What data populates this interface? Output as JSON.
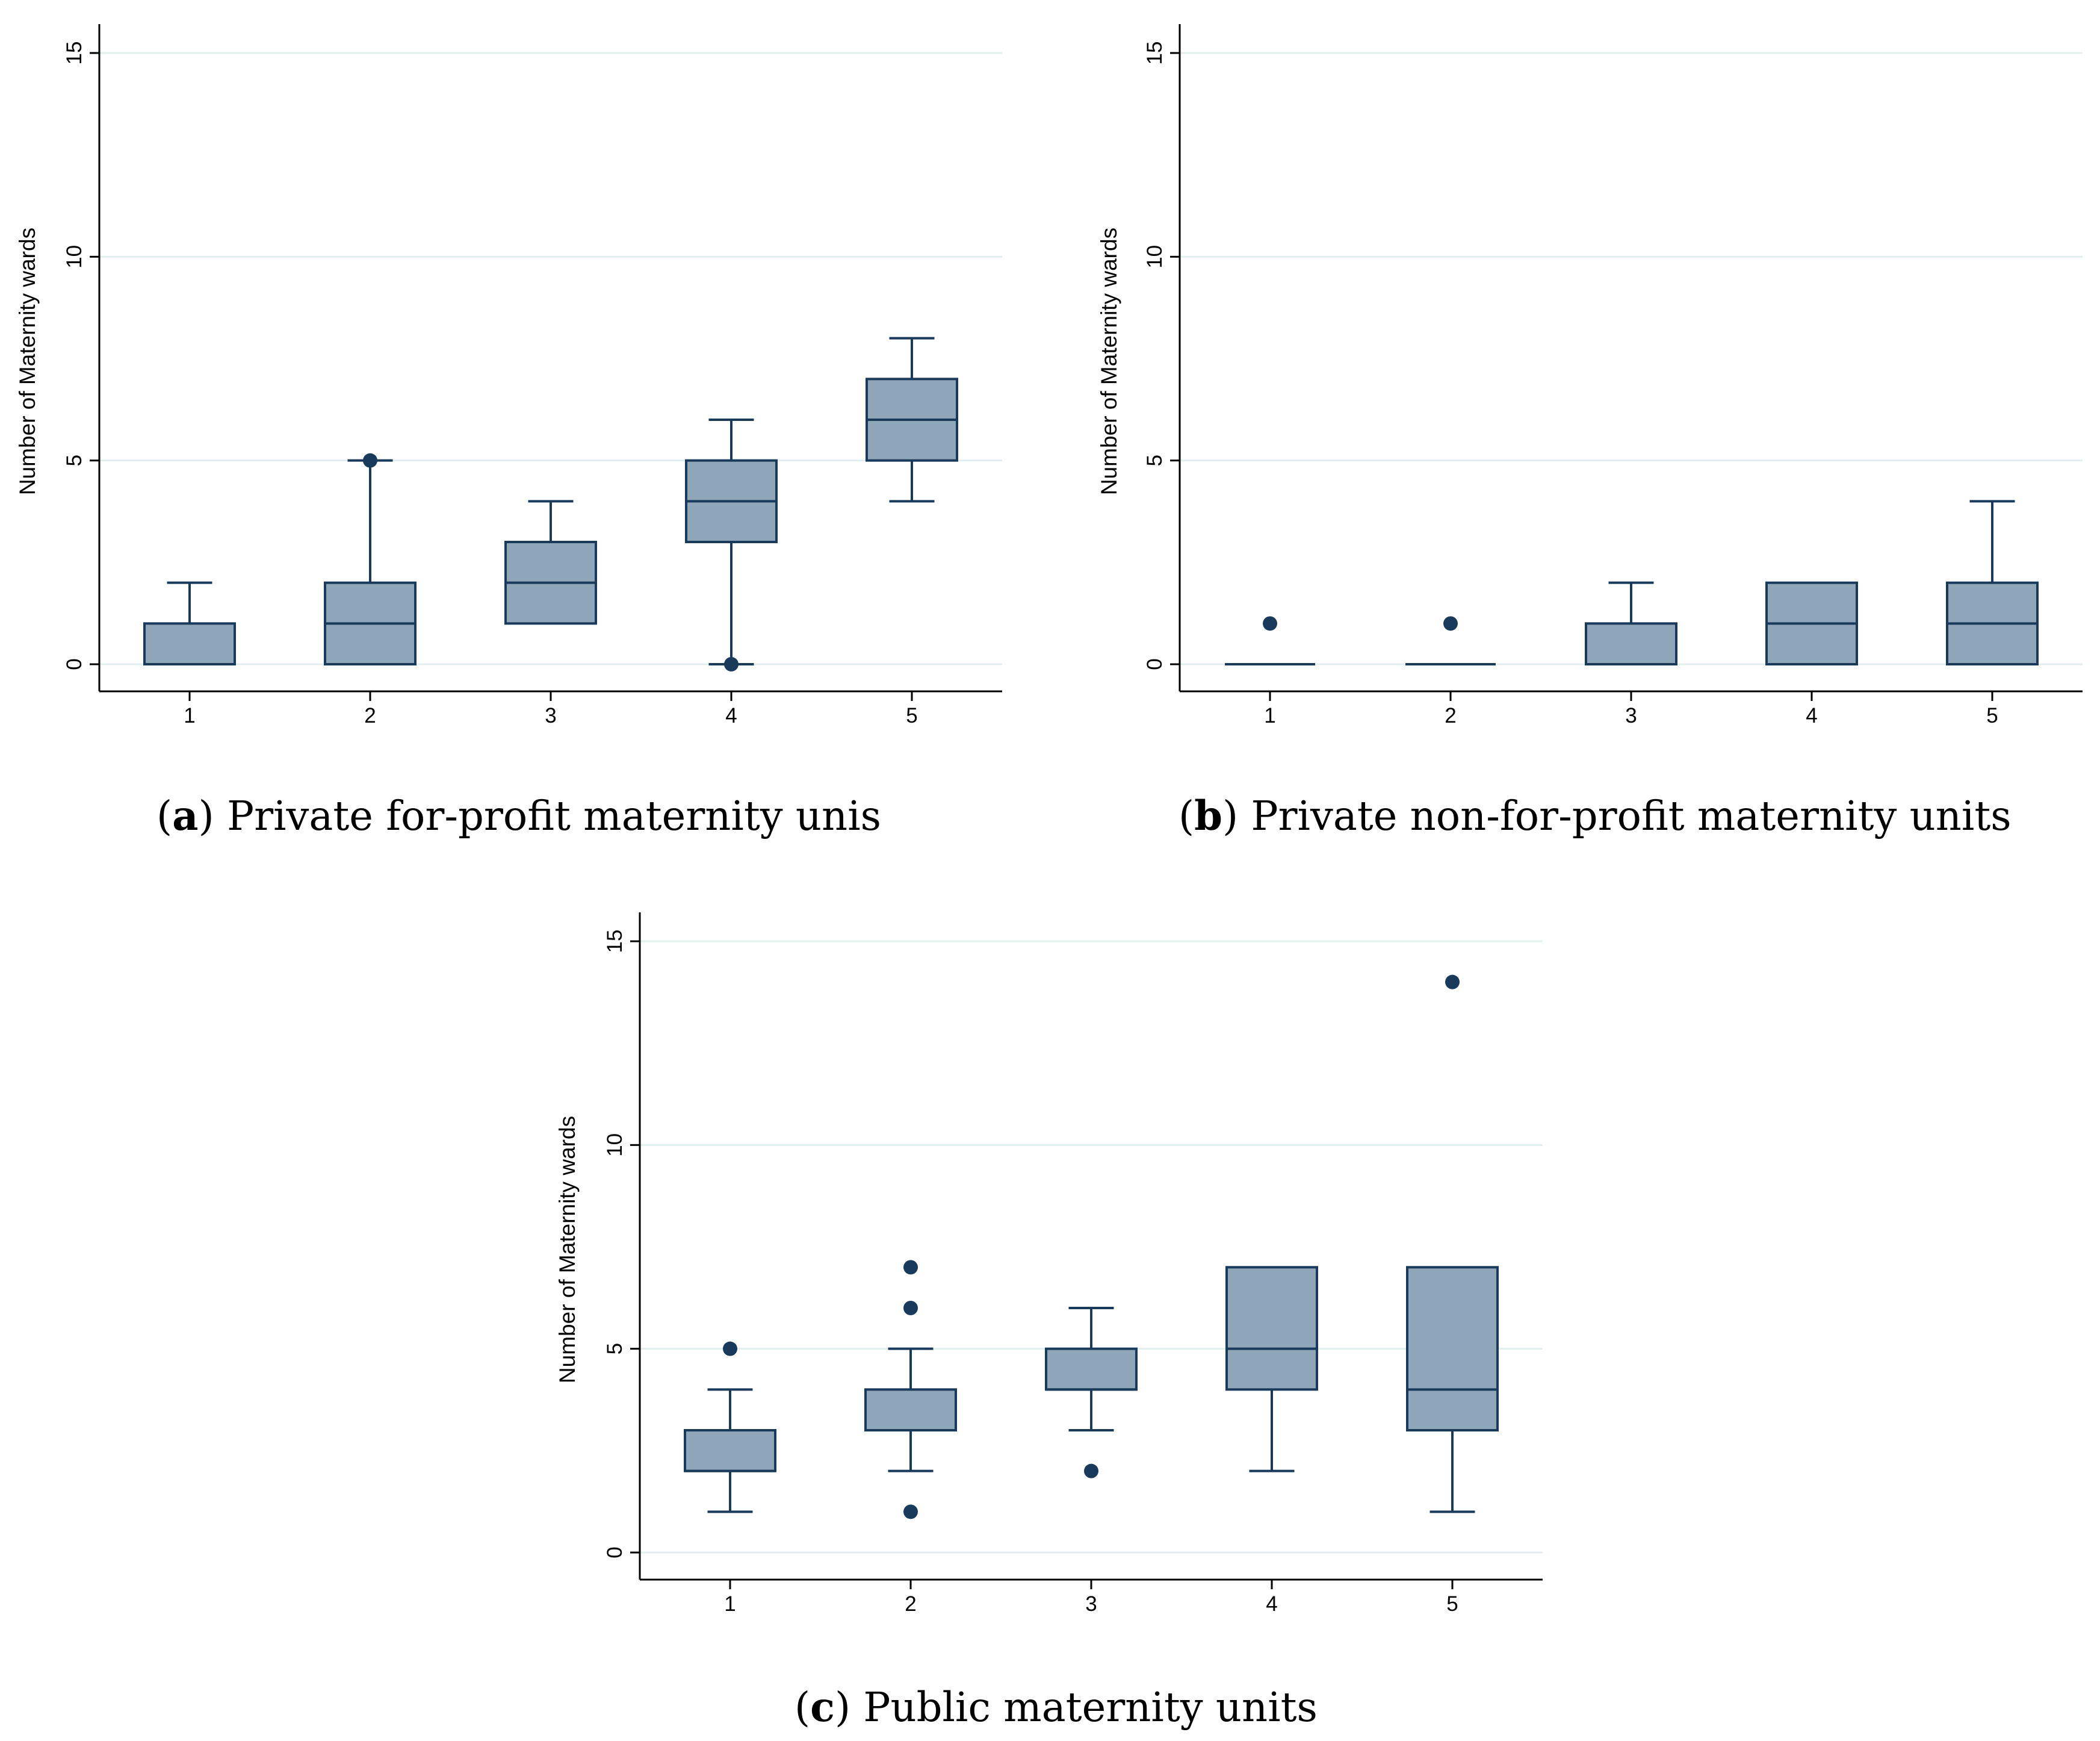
{
  "chart_data": [
    {
      "type": "boxplot",
      "caption_label": "a",
      "caption_text": "Private for-profit maternity unis",
      "xlabel": "",
      "ylabel": "Number of Maternity wards",
      "categories": [
        "1",
        "2",
        "3",
        "4",
        "5"
      ],
      "ylim": [
        0,
        15
      ],
      "yticks": [
        0,
        5,
        10,
        15
      ],
      "grid": true,
      "boxes": [
        {
          "category": "1",
          "whisker_low": 0,
          "q1": 0,
          "median": 0,
          "q3": 1,
          "whisker_high": 2,
          "outliers": []
        },
        {
          "category": "2",
          "whisker_low": 0,
          "q1": 0,
          "median": 1,
          "q3": 2,
          "whisker_high": 5,
          "outliers": [
            5
          ]
        },
        {
          "category": "3",
          "whisker_low": 1,
          "q1": 1,
          "median": 2,
          "q3": 3,
          "whisker_high": 4,
          "outliers": []
        },
        {
          "category": "4",
          "whisker_low": 0,
          "q1": 3,
          "median": 4,
          "q3": 5,
          "whisker_high": 6,
          "outliers": [
            0
          ]
        },
        {
          "category": "5",
          "whisker_low": 4,
          "q1": 5,
          "median": 6,
          "q3": 7,
          "whisker_high": 8,
          "outliers": []
        }
      ]
    },
    {
      "type": "boxplot",
      "caption_label": "b",
      "caption_text": "Private non-for-profit maternity units",
      "xlabel": "",
      "ylabel": "Number of Maternity wards",
      "categories": [
        "1",
        "2",
        "3",
        "4",
        "5"
      ],
      "ylim": [
        0,
        15
      ],
      "yticks": [
        0,
        5,
        10,
        15
      ],
      "grid": true,
      "boxes": [
        {
          "category": "1",
          "whisker_low": 0,
          "q1": 0,
          "median": 0,
          "q3": 0,
          "whisker_high": 0,
          "outliers": [
            1
          ]
        },
        {
          "category": "2",
          "whisker_low": 0,
          "q1": 0,
          "median": 0,
          "q3": 0,
          "whisker_high": 0,
          "outliers": [
            1
          ]
        },
        {
          "category": "3",
          "whisker_low": 0,
          "q1": 0,
          "median": 0,
          "q3": 1,
          "whisker_high": 2,
          "outliers": []
        },
        {
          "category": "4",
          "whisker_low": 0,
          "q1": 0,
          "median": 1,
          "q3": 2,
          "whisker_high": 2,
          "outliers": []
        },
        {
          "category": "5",
          "whisker_low": 0,
          "q1": 0,
          "median": 1,
          "q3": 2,
          "whisker_high": 4,
          "outliers": []
        }
      ]
    },
    {
      "type": "boxplot",
      "caption_label": "c",
      "caption_text": "Public maternity units",
      "xlabel": "",
      "ylabel": "Number of Maternity wards",
      "categories": [
        "1",
        "2",
        "3",
        "4",
        "5"
      ],
      "ylim": [
        0,
        15
      ],
      "yticks": [
        0,
        5,
        10,
        15
      ],
      "grid": true,
      "boxes": [
        {
          "category": "1",
          "whisker_low": 1,
          "q1": 2,
          "median": 2,
          "q3": 3,
          "whisker_high": 4,
          "outliers": [
            5
          ]
        },
        {
          "category": "2",
          "whisker_low": 2,
          "q1": 3,
          "median": 3,
          "q3": 4,
          "whisker_high": 5,
          "outliers": [
            7,
            6,
            1
          ]
        },
        {
          "category": "3",
          "whisker_low": 3,
          "q1": 4,
          "median": 4,
          "q3": 5,
          "whisker_high": 6,
          "outliers": [
            2
          ]
        },
        {
          "category": "4",
          "whisker_low": 2,
          "q1": 4,
          "median": 5,
          "q3": 7,
          "whisker_high": 7,
          "outliers": []
        },
        {
          "category": "5",
          "whisker_low": 1,
          "q1": 3,
          "median": 4,
          "q3": 7,
          "whisker_high": 7,
          "outliers": [
            14
          ]
        }
      ]
    }
  ],
  "colors": {
    "box_fill": "#8fa5b8",
    "box_stroke": "#1a3a5c",
    "outlier": "#1a3a5c",
    "grid": "#e3eeee",
    "axis": "#000000"
  }
}
